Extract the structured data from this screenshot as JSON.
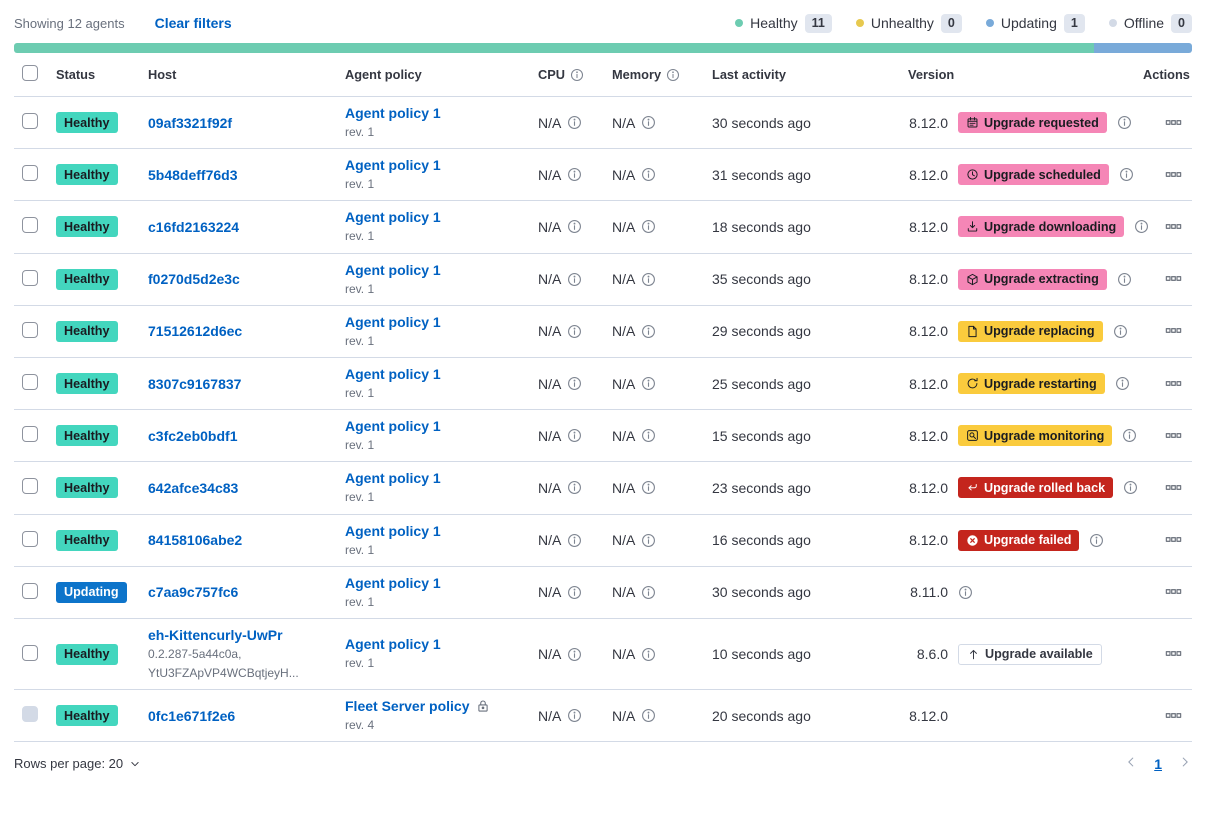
{
  "toolbar": {
    "showing_label": "Showing 12 agents",
    "clear_filters_label": "Clear filters",
    "legend": [
      {
        "label": "Healthy",
        "count": "11",
        "color": "#6DCCB1"
      },
      {
        "label": "Unhealthy",
        "count": "0",
        "color": "#E7C94F"
      },
      {
        "label": "Updating",
        "count": "1",
        "color": "#79AAD9"
      },
      {
        "label": "Offline",
        "count": "0",
        "color": "#D3DAE6"
      }
    ]
  },
  "health_bar": {
    "segments": [
      {
        "status": "healthy",
        "color": "#6DCCB1",
        "fraction": 0.9167
      },
      {
        "status": "updating",
        "color": "#79AAD9",
        "fraction": 0.0833
      }
    ]
  },
  "table": {
    "headers": {
      "status": "Status",
      "host": "Host",
      "policy": "Agent policy",
      "cpu": "CPU",
      "memory": "Memory",
      "last_activity": "Last activity",
      "version": "Version",
      "actions": "Actions"
    },
    "rows": [
      {
        "status": {
          "label": "Healthy",
          "style": "success"
        },
        "host": "09af3321f92f",
        "host_meta": [],
        "policy": {
          "name": "Agent policy 1",
          "rev": "rev. 1",
          "locked": false
        },
        "cpu": "N/A",
        "memory": "N/A",
        "last_activity": "30 seconds ago",
        "version": "8.12.0",
        "upgrade": {
          "label": "Upgrade requested",
          "icon": "calendar",
          "style": "pink",
          "info": true
        },
        "version_info": false,
        "checkbox_disabled": false
      },
      {
        "status": {
          "label": "Healthy",
          "style": "success"
        },
        "host": "5b48deff76d3",
        "host_meta": [],
        "policy": {
          "name": "Agent policy 1",
          "rev": "rev. 1",
          "locked": false
        },
        "cpu": "N/A",
        "memory": "N/A",
        "last_activity": "31 seconds ago",
        "version": "8.12.0",
        "upgrade": {
          "label": "Upgrade scheduled",
          "icon": "clock",
          "style": "pink",
          "info": true
        },
        "version_info": false,
        "checkbox_disabled": false
      },
      {
        "status": {
          "label": "Healthy",
          "style": "success"
        },
        "host": "c16fd2163224",
        "host_meta": [],
        "policy": {
          "name": "Agent policy 1",
          "rev": "rev. 1",
          "locked": false
        },
        "cpu": "N/A",
        "memory": "N/A",
        "last_activity": "18 seconds ago",
        "version": "8.12.0",
        "upgrade": {
          "label": "Upgrade downloading",
          "icon": "download",
          "style": "pink",
          "info": true
        },
        "version_info": false,
        "checkbox_disabled": false
      },
      {
        "status": {
          "label": "Healthy",
          "style": "success"
        },
        "host": "f0270d5d2e3c",
        "host_meta": [],
        "policy": {
          "name": "Agent policy 1",
          "rev": "rev. 1",
          "locked": false
        },
        "cpu": "N/A",
        "memory": "N/A",
        "last_activity": "35 seconds ago",
        "version": "8.12.0",
        "upgrade": {
          "label": "Upgrade extracting",
          "icon": "package",
          "style": "pink",
          "info": true
        },
        "version_info": false,
        "checkbox_disabled": false
      },
      {
        "status": {
          "label": "Healthy",
          "style": "success"
        },
        "host": "71512612d6ec",
        "host_meta": [],
        "policy": {
          "name": "Agent policy 1",
          "rev": "rev. 1",
          "locked": false
        },
        "cpu": "N/A",
        "memory": "N/A",
        "last_activity": "29 seconds ago",
        "version": "8.12.0",
        "upgrade": {
          "label": "Upgrade replacing",
          "icon": "document",
          "style": "warning",
          "info": true
        },
        "version_info": false,
        "checkbox_disabled": false
      },
      {
        "status": {
          "label": "Healthy",
          "style": "success"
        },
        "host": "8307c9167837",
        "host_meta": [],
        "policy": {
          "name": "Agent policy 1",
          "rev": "rev. 1",
          "locked": false
        },
        "cpu": "N/A",
        "memory": "N/A",
        "last_activity": "25 seconds ago",
        "version": "8.12.0",
        "upgrade": {
          "label": "Upgrade restarting",
          "icon": "refresh",
          "style": "warning",
          "info": true
        },
        "version_info": false,
        "checkbox_disabled": false
      },
      {
        "status": {
          "label": "Healthy",
          "style": "success"
        },
        "host": "c3fc2eb0bdf1",
        "host_meta": [],
        "policy": {
          "name": "Agent policy 1",
          "rev": "rev. 1",
          "locked": false
        },
        "cpu": "N/A",
        "memory": "N/A",
        "last_activity": "15 seconds ago",
        "version": "8.12.0",
        "upgrade": {
          "label": "Upgrade monitoring",
          "icon": "inspect",
          "style": "warning",
          "info": true
        },
        "version_info": false,
        "checkbox_disabled": false
      },
      {
        "status": {
          "label": "Healthy",
          "style": "success"
        },
        "host": "642afce34c83",
        "host_meta": [],
        "policy": {
          "name": "Agent policy 1",
          "rev": "rev. 1",
          "locked": false
        },
        "cpu": "N/A",
        "memory": "N/A",
        "last_activity": "23 seconds ago",
        "version": "8.12.0",
        "upgrade": {
          "label": "Upgrade rolled back",
          "icon": "return",
          "style": "danger",
          "info": true
        },
        "version_info": false,
        "checkbox_disabled": false
      },
      {
        "status": {
          "label": "Healthy",
          "style": "success"
        },
        "host": "84158106abe2",
        "host_meta": [],
        "policy": {
          "name": "Agent policy 1",
          "rev": "rev. 1",
          "locked": false
        },
        "cpu": "N/A",
        "memory": "N/A",
        "last_activity": "16 seconds ago",
        "version": "8.12.0",
        "upgrade": {
          "label": "Upgrade failed",
          "icon": "error",
          "style": "danger",
          "info": true
        },
        "version_info": false,
        "checkbox_disabled": false
      },
      {
        "status": {
          "label": "Updating",
          "style": "primary"
        },
        "host": "c7aa9c757fc6",
        "host_meta": [],
        "policy": {
          "name": "Agent policy 1",
          "rev": "rev. 1",
          "locked": false
        },
        "cpu": "N/A",
        "memory": "N/A",
        "last_activity": "30 seconds ago",
        "version": "8.11.0",
        "upgrade": null,
        "version_info": true,
        "checkbox_disabled": false
      },
      {
        "status": {
          "label": "Healthy",
          "style": "success"
        },
        "host": "eh-Kittencurly-UwPr",
        "host_meta": [
          "0.2.287-5a44c0a,",
          "YtU3FZApVP4WCBqtjeyH..."
        ],
        "policy": {
          "name": "Agent policy 1",
          "rev": "rev. 1",
          "locked": false
        },
        "cpu": "N/A",
        "memory": "N/A",
        "last_activity": "10 seconds ago",
        "version": "8.6.0",
        "upgrade": {
          "label": "Upgrade available",
          "icon": "arrow-up",
          "style": "hollow",
          "info": false
        },
        "version_info": false,
        "checkbox_disabled": false
      },
      {
        "status": {
          "label": "Healthy",
          "style": "success"
        },
        "host": "0fc1e671f2e6",
        "host_meta": [],
        "policy": {
          "name": "Fleet Server policy",
          "rev": "rev. 4",
          "locked": true
        },
        "cpu": "N/A",
        "memory": "N/A",
        "last_activity": "20 seconds ago",
        "version": "8.12.0",
        "upgrade": null,
        "version_info": false,
        "checkbox_disabled": true
      }
    ]
  },
  "footer": {
    "rows_per_page_label": "Rows per page: 20",
    "page": "1"
  },
  "colors": {
    "link": "#0061c2",
    "healthy_badge": "#43D6BE",
    "updating_badge": "#0D74CA",
    "pink_badge": "#F586B6",
    "warning_badge": "#FACB3D",
    "danger_badge": "#C4251D",
    "bar_green": "#6DCCB1",
    "bar_blue": "#79AAD9"
  }
}
